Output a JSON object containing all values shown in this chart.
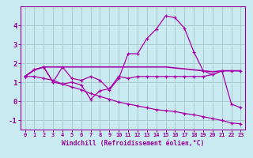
{
  "xlabel": "Windchill (Refroidissement éolien,°C)",
  "bg_color": "#c8eaf0",
  "grid_color": "#aacccc",
  "line_color": "#aa00aa",
  "x": [
    0,
    1,
    2,
    3,
    4,
    5,
    6,
    7,
    8,
    9,
    10,
    11,
    12,
    13,
    14,
    15,
    16,
    17,
    18,
    19,
    20,
    21,
    22,
    23
  ],
  "line1": [
    1.3,
    1.65,
    1.8,
    1.0,
    1.8,
    1.2,
    1.1,
    1.3,
    1.1,
    0.6,
    1.2,
    2.5,
    2.5,
    3.3,
    3.8,
    4.5,
    4.4,
    3.85,
    2.6,
    1.6,
    1.4,
    1.6,
    -0.15,
    -0.35
  ],
  "line2": [
    1.3,
    1.65,
    1.8,
    1.0,
    0.9,
    1.0,
    0.85,
    0.1,
    0.55,
    0.65,
    1.3,
    1.2,
    1.3,
    1.3,
    1.3,
    1.3,
    1.3,
    1.3,
    1.3,
    1.3,
    1.4,
    1.6,
    1.6,
    1.6
  ],
  "line3_flat": [
    1.3,
    1.65,
    1.8,
    1.8,
    1.8,
    1.8,
    1.8,
    1.8,
    1.8,
    1.8,
    1.8,
    1.8,
    1.8,
    1.8,
    1.8,
    1.8,
    1.75,
    1.7,
    1.65,
    1.6,
    1.55,
    1.6,
    1.6,
    1.6
  ],
  "line4": [
    1.3,
    1.3,
    1.2,
    1.1,
    0.9,
    0.75,
    0.6,
    0.4,
    0.25,
    0.1,
    -0.05,
    -0.15,
    -0.25,
    -0.35,
    -0.45,
    -0.5,
    -0.55,
    -0.65,
    -0.72,
    -0.82,
    -0.92,
    -1.02,
    -1.15,
    -1.2
  ],
  "ylim": [
    -1.5,
    5.0
  ],
  "xlim": [
    -0.5,
    23.5
  ],
  "yticks": [
    -1,
    0,
    1,
    2,
    3,
    4
  ],
  "xticks": [
    0,
    1,
    2,
    3,
    4,
    5,
    6,
    7,
    8,
    9,
    10,
    11,
    12,
    13,
    14,
    15,
    16,
    17,
    18,
    19,
    20,
    21,
    22,
    23
  ]
}
